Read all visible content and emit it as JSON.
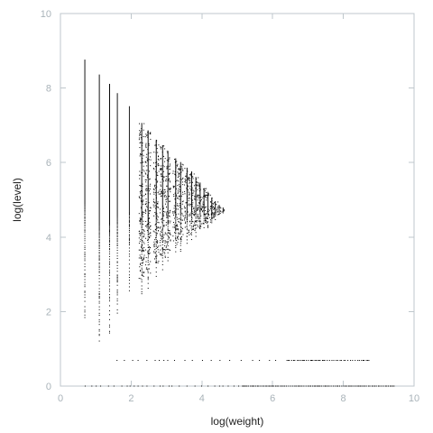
{
  "chart_data": {
    "type": "scatter",
    "title": "",
    "xlabel": "log(weight)",
    "ylabel": "log(level)",
    "xlim": [
      0,
      10
    ],
    "ylim": [
      0,
      10
    ],
    "grid": false,
    "x_ticks": [
      "0",
      "2",
      "4",
      "6",
      "8",
      "10"
    ],
    "y_ticks": [
      "0",
      "2",
      "4",
      "6",
      "8",
      "10"
    ],
    "point_color": "#000000",
    "axis_color": "#bfc7cc",
    "tick_label_color": "#a9b3b9",
    "columns": [
      {
        "x": 0.69,
        "y_min": 1.8,
        "y_max": 8.75
      },
      {
        "x": 1.1,
        "y_min": 1.1,
        "y_max": 8.35
      },
      {
        "x": 1.39,
        "y_min": 1.39,
        "y_max": 8.1
      },
      {
        "x": 1.61,
        "y_min": 1.9,
        "y_max": 7.85
      },
      {
        "x": 1.95,
        "y_min": 2.5,
        "y_max": 7.5
      },
      {
        "x": 2.3,
        "y_min": 2.4,
        "y_max": 7.05
      },
      {
        "x": 2.48,
        "y_min": 2.6,
        "y_max": 6.85
      },
      {
        "x": 2.71,
        "y_min": 2.9,
        "y_max": 6.6
      },
      {
        "x": 2.89,
        "y_min": 3.1,
        "y_max": 6.45
      },
      {
        "x": 3.04,
        "y_min": 3.3,
        "y_max": 6.3
      },
      {
        "x": 3.26,
        "y_min": 3.5,
        "y_max": 6.1
      },
      {
        "x": 3.4,
        "y_min": 3.6,
        "y_max": 6.0
      },
      {
        "x": 3.58,
        "y_min": 3.8,
        "y_max": 5.85
      },
      {
        "x": 3.71,
        "y_min": 3.9,
        "y_max": 5.75
      },
      {
        "x": 3.83,
        "y_min": 4.0,
        "y_max": 5.6
      },
      {
        "x": 3.95,
        "y_min": 4.1,
        "y_max": 5.45
      },
      {
        "x": 4.06,
        "y_min": 4.2,
        "y_max": 5.3
      },
      {
        "x": 4.17,
        "y_min": 4.25,
        "y_max": 5.2
      },
      {
        "x": 4.28,
        "y_min": 4.35,
        "y_max": 5.05
      },
      {
        "x": 4.38,
        "y_min": 4.45,
        "y_max": 4.95
      },
      {
        "x": 4.49,
        "y_min": 4.55,
        "y_max": 4.85
      },
      {
        "x": 4.6,
        "y_min": 4.62,
        "y_max": 4.78
      }
    ],
    "bands": [
      {
        "x_start": 1.6,
        "x_end": 8.75,
        "y": 0.69
      },
      {
        "x_start": 0.7,
        "x_end": 9.45,
        "y": 0.0
      }
    ]
  }
}
